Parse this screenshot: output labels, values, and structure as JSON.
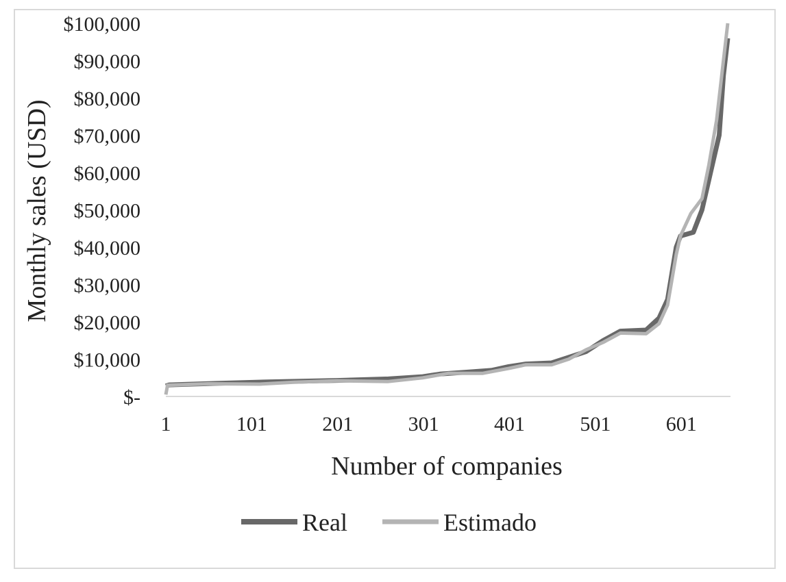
{
  "chart_data": {
    "type": "line",
    "xlabel": "Number of companies",
    "ylabel": "Monthly sales (USD)",
    "xlim": [
      1,
      655
    ],
    "ylim": [
      0,
      100000
    ],
    "x_ticks": [
      1,
      101,
      201,
      301,
      401,
      501,
      601
    ],
    "x_tick_labels": [
      "1",
      "101",
      "201",
      "301",
      "401",
      "501",
      "601"
    ],
    "y_ticks": [
      0,
      10000,
      20000,
      30000,
      40000,
      50000,
      60000,
      70000,
      80000,
      90000,
      100000
    ],
    "y_tick_labels": [
      "$-",
      "$10,000",
      "$20,000",
      "$30,000",
      "$40,000",
      "$50,000",
      "$60,000",
      "$70,000",
      "$80,000",
      "$90,000",
      "$100,000"
    ],
    "grid": false,
    "legend_position": "bottom",
    "series": [
      {
        "name": "Real",
        "color": "#686868",
        "x": [
          1,
          5,
          60,
          120,
          200,
          260,
          300,
          320,
          350,
          380,
          400,
          420,
          450,
          470,
          490,
          510,
          530,
          560,
          575,
          585,
          595,
          600,
          615,
          625,
          635,
          645,
          650,
          655
        ],
        "y": [
          2800,
          3100,
          3500,
          3900,
          4300,
          4700,
          5300,
          6000,
          6500,
          7000,
          8000,
          8700,
          9000,
          10500,
          12000,
          15000,
          17500,
          17800,
          21000,
          26000,
          40000,
          43000,
          44000,
          50000,
          60000,
          70000,
          86000,
          96000
        ]
      },
      {
        "name": "Estimado",
        "color": "#b4b4b4",
        "x": [
          1,
          3,
          50,
          110,
          150,
          200,
          260,
          300,
          330,
          370,
          400,
          420,
          450,
          470,
          490,
          510,
          530,
          560,
          575,
          585,
          595,
          600,
          612,
          625,
          633,
          642,
          650,
          655
        ],
        "y": [
          500,
          3000,
          3400,
          3300,
          3800,
          4200,
          4000,
          5000,
          6200,
          6200,
          7500,
          8500,
          8500,
          10000,
          12500,
          14500,
          17000,
          16800,
          19500,
          24500,
          38000,
          43000,
          49000,
          53000,
          62000,
          74000,
          90000,
          100000
        ]
      }
    ]
  }
}
